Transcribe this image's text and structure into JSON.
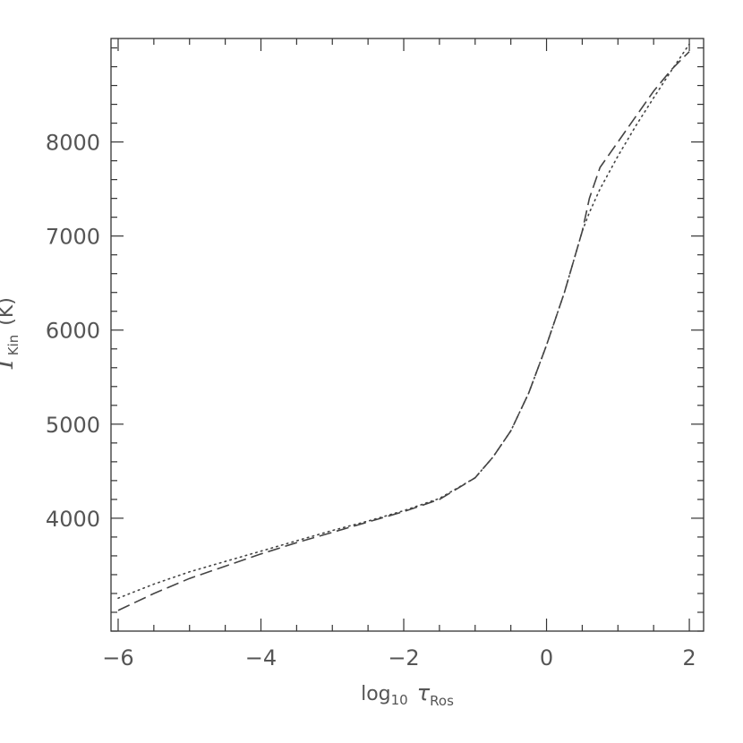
{
  "chart_data": {
    "type": "line",
    "xlabel": {
      "base": "log",
      "base_sub": "10",
      "symbol": "τ",
      "symbol_sub": "Ros"
    },
    "ylabel": {
      "symbol": "T",
      "symbol_sub": "Kin",
      "unit": "(K)"
    },
    "xlim": [
      -6.1,
      2.2
    ],
    "ylim": [
      2800,
      9100
    ],
    "x_major_ticks": [
      -6,
      -4,
      -2,
      0,
      2
    ],
    "x_tick_labels": [
      "−6",
      "−4",
      "−2",
      "0",
      "2"
    ],
    "y_major_ticks": [
      4000,
      5000,
      6000,
      7000,
      8000
    ],
    "y_tick_labels": [
      "4000",
      "5000",
      "6000",
      "7000",
      "8000"
    ],
    "grid": false,
    "series": [
      {
        "style": "dashed",
        "x": [
          -6.0,
          -5.5,
          -5.0,
          -4.5,
          -4.0,
          -3.5,
          -3.0,
          -2.5,
          -2.0,
          -1.5,
          -1.0,
          -0.75,
          -0.5,
          -0.25,
          0.0,
          0.25,
          0.5,
          0.6,
          0.75,
          1.0,
          1.25,
          1.5,
          1.75,
          2.0
        ],
        "y": [
          3020,
          3200,
          3360,
          3490,
          3620,
          3740,
          3850,
          3960,
          4070,
          4200,
          4430,
          4650,
          4930,
          5330,
          5840,
          6400,
          7050,
          7400,
          7730,
          8000,
          8270,
          8540,
          8770,
          8960
        ]
      },
      {
        "style": "dotted",
        "x": [
          -6.0,
          -5.5,
          -5.0,
          -4.5,
          -4.0,
          -3.5,
          -3.0,
          -2.5,
          -2.0,
          -1.5,
          -1.0,
          -0.75,
          -0.5,
          -0.25,
          0.0,
          0.25,
          0.5,
          0.6,
          0.75,
          1.0,
          1.25,
          1.5,
          1.75,
          2.0
        ],
        "y": [
          3150,
          3300,
          3430,
          3540,
          3650,
          3760,
          3870,
          3970,
          4080,
          4210,
          4430,
          4650,
          4930,
          5330,
          5840,
          6400,
          7050,
          7250,
          7500,
          7850,
          8170,
          8470,
          8760,
          9040
        ]
      }
    ]
  }
}
